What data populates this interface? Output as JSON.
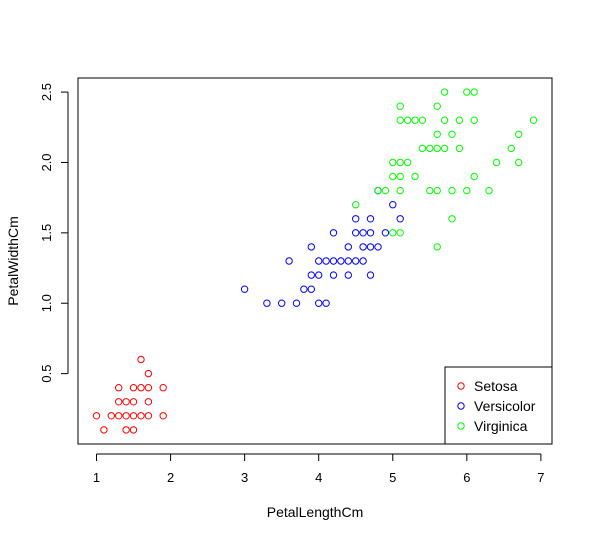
{
  "chart_data": {
    "type": "scatter",
    "title": "",
    "xlabel": "PetalLengthCm",
    "ylabel": "PetalWidthCm",
    "xlim": [
      0.75,
      7.15
    ],
    "ylim": [
      0.0,
      2.6
    ],
    "xticks": [
      "1",
      "2",
      "3",
      "4",
      "5",
      "6",
      "7"
    ],
    "yticks": [
      "0.5",
      "1.0",
      "1.5",
      "2.0",
      "2.5"
    ],
    "grid": false,
    "legend_position": "bottom-right",
    "series": [
      {
        "name": "Setosa",
        "color": "#ff0000",
        "points": [
          [
            1.0,
            0.2
          ],
          [
            1.1,
            0.1
          ],
          [
            1.2,
            0.2
          ],
          [
            1.3,
            0.2
          ],
          [
            1.3,
            0.3
          ],
          [
            1.3,
            0.4
          ],
          [
            1.4,
            0.1
          ],
          [
            1.4,
            0.2
          ],
          [
            1.4,
            0.3
          ],
          [
            1.5,
            0.1
          ],
          [
            1.5,
            0.2
          ],
          [
            1.5,
            0.3
          ],
          [
            1.5,
            0.4
          ],
          [
            1.6,
            0.2
          ],
          [
            1.6,
            0.4
          ],
          [
            1.6,
            0.6
          ],
          [
            1.7,
            0.2
          ],
          [
            1.7,
            0.3
          ],
          [
            1.7,
            0.4
          ],
          [
            1.7,
            0.5
          ],
          [
            1.9,
            0.2
          ],
          [
            1.9,
            0.4
          ]
        ]
      },
      {
        "name": "Versicolor",
        "color": "#0000ff",
        "points": [
          [
            3.0,
            1.1
          ],
          [
            3.3,
            1.0
          ],
          [
            3.5,
            1.0
          ],
          [
            3.6,
            1.3
          ],
          [
            3.7,
            1.0
          ],
          [
            3.8,
            1.1
          ],
          [
            3.9,
            1.1
          ],
          [
            3.9,
            1.2
          ],
          [
            3.9,
            1.4
          ],
          [
            4.0,
            1.0
          ],
          [
            4.0,
            1.2
          ],
          [
            4.0,
            1.3
          ],
          [
            4.1,
            1.0
          ],
          [
            4.1,
            1.3
          ],
          [
            4.2,
            1.2
          ],
          [
            4.2,
            1.3
          ],
          [
            4.2,
            1.5
          ],
          [
            4.3,
            1.3
          ],
          [
            4.4,
            1.2
          ],
          [
            4.4,
            1.3
          ],
          [
            4.4,
            1.4
          ],
          [
            4.5,
            1.3
          ],
          [
            4.5,
            1.5
          ],
          [
            4.5,
            1.6
          ],
          [
            4.6,
            1.3
          ],
          [
            4.6,
            1.4
          ],
          [
            4.6,
            1.5
          ],
          [
            4.7,
            1.2
          ],
          [
            4.7,
            1.4
          ],
          [
            4.7,
            1.5
          ],
          [
            4.7,
            1.6
          ],
          [
            4.8,
            1.4
          ],
          [
            4.8,
            1.8
          ],
          [
            4.9,
            1.5
          ],
          [
            5.0,
            1.7
          ],
          [
            5.1,
            1.6
          ]
        ]
      },
      {
        "name": "Virginica",
        "color": "#00ff00",
        "points": [
          [
            4.5,
            1.7
          ],
          [
            4.8,
            1.8
          ],
          [
            4.9,
            1.8
          ],
          [
            5.0,
            1.5
          ],
          [
            5.0,
            1.9
          ],
          [
            5.0,
            2.0
          ],
          [
            5.1,
            1.5
          ],
          [
            5.1,
            1.8
          ],
          [
            5.1,
            1.9
          ],
          [
            5.1,
            2.0
          ],
          [
            5.1,
            2.3
          ],
          [
            5.1,
            2.4
          ],
          [
            5.2,
            2.0
          ],
          [
            5.2,
            2.3
          ],
          [
            5.3,
            1.9
          ],
          [
            5.3,
            2.3
          ],
          [
            5.4,
            2.1
          ],
          [
            5.4,
            2.3
          ],
          [
            5.5,
            1.8
          ],
          [
            5.5,
            2.1
          ],
          [
            5.6,
            1.4
          ],
          [
            5.6,
            1.8
          ],
          [
            5.6,
            2.1
          ],
          [
            5.6,
            2.2
          ],
          [
            5.6,
            2.4
          ],
          [
            5.7,
            2.1
          ],
          [
            5.7,
            2.3
          ],
          [
            5.7,
            2.5
          ],
          [
            5.8,
            1.6
          ],
          [
            5.8,
            1.8
          ],
          [
            5.8,
            2.2
          ],
          [
            5.9,
            2.1
          ],
          [
            5.9,
            2.3
          ],
          [
            6.0,
            1.8
          ],
          [
            6.0,
            2.5
          ],
          [
            6.1,
            1.9
          ],
          [
            6.1,
            2.3
          ],
          [
            6.1,
            2.5
          ],
          [
            6.3,
            1.8
          ],
          [
            6.4,
            2.0
          ],
          [
            6.6,
            2.1
          ],
          [
            6.7,
            2.0
          ],
          [
            6.7,
            2.2
          ],
          [
            6.9,
            2.3
          ]
        ]
      }
    ]
  }
}
